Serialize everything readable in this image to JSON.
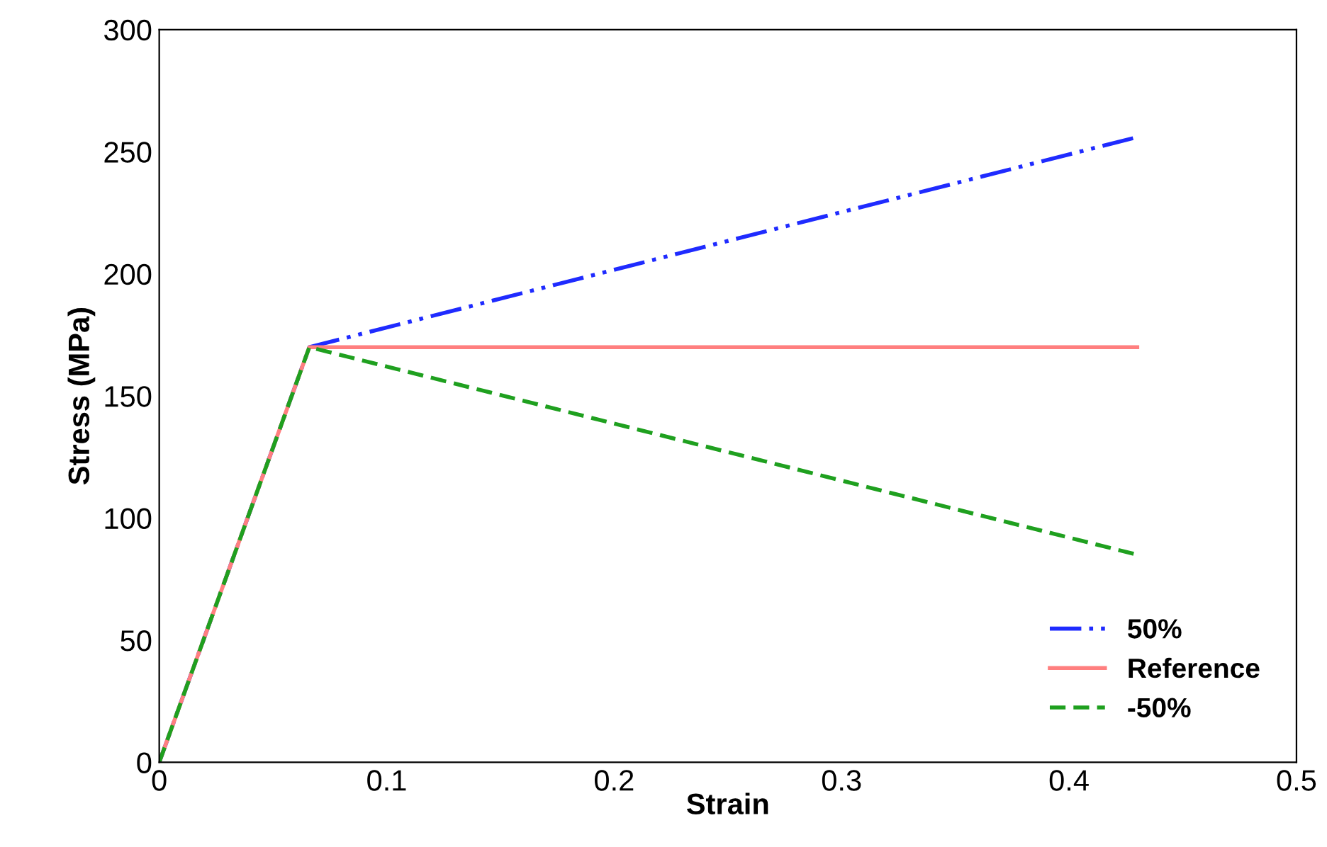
{
  "chart_data": {
    "type": "line",
    "xlabel": "Strain",
    "ylabel": "Stress (MPa)",
    "xlim": [
      0,
      0.5
    ],
    "xticks": [
      0,
      0.1,
      0.2,
      0.3,
      0.4,
      0.5
    ],
    "ylim": [
      0,
      300
    ],
    "yticks": [
      0,
      50,
      100,
      150,
      200,
      250,
      300
    ],
    "legend": "bottom right",
    "marker": "none",
    "series": [
      {
        "name": "50%",
        "color": "#1f2bff",
        "line_style": "dashdot",
        "x": [
          0,
          0.066,
          0.43
        ],
        "values": [
          0,
          170,
          256
        ]
      },
      {
        "name": "Reference",
        "color": "#ff7f7f",
        "line_style": "solid",
        "x": [
          0,
          0.066,
          0.43
        ],
        "values": [
          0,
          170,
          170
        ]
      },
      {
        "name": "-50%",
        "color": "#1fa01f",
        "line_style": "dashed",
        "x": [
          0,
          0.066,
          0.43
        ],
        "values": [
          0,
          170,
          85
        ]
      }
    ]
  }
}
